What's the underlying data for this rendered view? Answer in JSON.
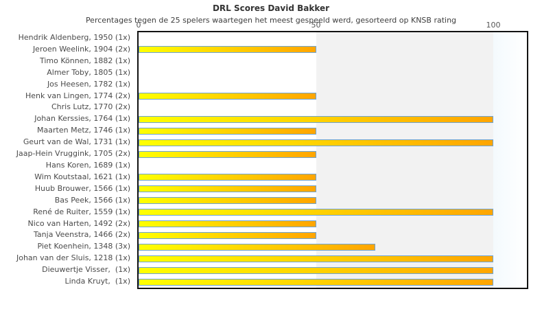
{
  "title": "DRL Scores David Bakker",
  "subtitle": "Percentages tegen de 25 spelers waartegen het meest gespeeld werd, gesorteerd op KNSB rating",
  "colors": {
    "title_text": "#333333",
    "label_text": "#4a4a4a",
    "tick_text": "#555555",
    "plot_border": "#111111",
    "bar_border": "#6ba3d6",
    "bar_gradient_start": "#ffff00",
    "bar_gradient_end": "#ffa500",
    "zone_0_50": "#ffffff",
    "zone_50_100": "#f2f2f2",
    "zone_over_100_start": "#f4fafd",
    "zone_over_100_end": "#ffffff"
  },
  "chart_data": {
    "type": "bar",
    "orientation": "horizontal",
    "title": "DRL Scores David Bakker",
    "subtitle": "Percentages tegen de 25 spelers waartegen het meest gespeeld werd, gesorteerd op KNSB rating",
    "xlabel": "",
    "ylabel": "",
    "xlim": [
      0,
      109.5
    ],
    "x_ticks": [
      0,
      50,
      100
    ],
    "grid": false,
    "legend": "none",
    "categories": [
      "Hendrik Aldenberg, 1950 (1x)",
      "Jeroen Weelink, 1904 (2x)",
      "Timo Können, 1882 (1x)",
      "Almer Toby, 1805 (1x)",
      "Jos Heesen, 1782 (1x)",
      "Henk van Lingen, 1774 (2x)",
      "Chris Lutz, 1770 (2x)",
      "Johan Kerssies, 1764 (1x)",
      "Maarten Metz, 1746 (1x)",
      "Geurt van de Wal, 1731 (1x)",
      "Jaap-Hein Vruggink, 1705 (2x)",
      "Hans Koren, 1689 (1x)",
      "Wim Koutstaal, 1621 (1x)",
      "Huub Brouwer, 1566 (1x)",
      "Bas Peek, 1566 (1x)",
      "René de Ruiter, 1559 (1x)",
      "Nico van Harten, 1492 (2x)",
      "Tanja Veenstra, 1466 (2x)",
      "Piet Koenhein, 1348 (3x)",
      "Johan van der Sluis, 1218 (1x)",
      "Dieuwertje Visser,  (1x)",
      "Linda Kruyt,  (1x)"
    ],
    "values": [
      0,
      50,
      0,
      0,
      0,
      50,
      0,
      100,
      50,
      100,
      50,
      0,
      50,
      50,
      50,
      100,
      50,
      50,
      66.7,
      100,
      100,
      100
    ]
  }
}
